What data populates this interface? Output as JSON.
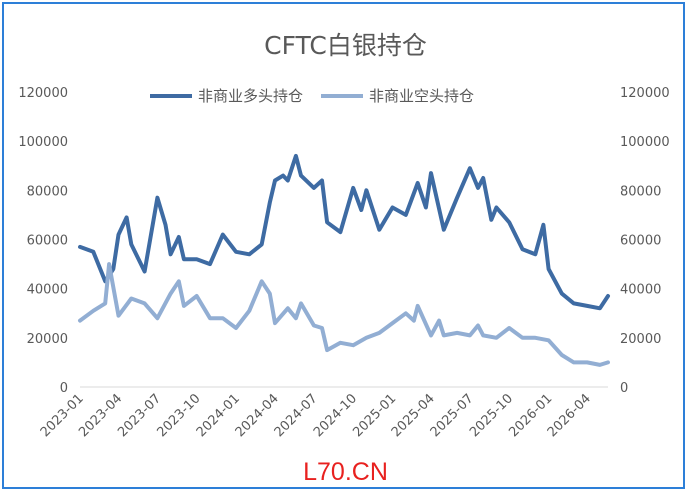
{
  "chart_data": {
    "type": "line",
    "title": "CFTC白银持仓",
    "xlabel": "",
    "ylabel": "",
    "ylim": [
      0,
      120000
    ],
    "y_ticks": [
      "0",
      "20000",
      "40000",
      "60000",
      "80000",
      "100000",
      "120000"
    ],
    "y2_ticks": [
      "0",
      "20000",
      "40000",
      "60000",
      "80000",
      "100000",
      "120000"
    ],
    "x_ticks": [
      "2023-01",
      "2023-04",
      "2023-07",
      "2023-10",
      "2024-01",
      "2024-04",
      "2024-07",
      "2024-10",
      "2025-01",
      "2025-04",
      "2025-07",
      "2025-10",
      "2026-01",
      "2026-04"
    ],
    "grid": false,
    "legend": "top",
    "series": [
      {
        "name": "非商业多头持仓",
        "color": "#3e6ba3",
        "points": [
          [
            "2023-01",
            57000
          ],
          [
            "2023-02",
            55000
          ],
          [
            "2023-03",
            43000
          ],
          [
            "2023-03-20",
            48000
          ],
          [
            "2023-04",
            62000
          ],
          [
            "2023-04-20",
            69000
          ],
          [
            "2023-05",
            58000
          ],
          [
            "2023-06",
            47000
          ],
          [
            "2023-07",
            77000
          ],
          [
            "2023-07-20",
            66000
          ],
          [
            "2023-08",
            54000
          ],
          [
            "2023-08-20",
            61000
          ],
          [
            "2023-09",
            52000
          ],
          [
            "2023-10",
            52000
          ],
          [
            "2023-11",
            50000
          ],
          [
            "2023-12",
            62000
          ],
          [
            "2024-01",
            55000
          ],
          [
            "2024-02",
            54000
          ],
          [
            "2024-03",
            58000
          ],
          [
            "2024-03-20",
            75000
          ],
          [
            "2024-04",
            84000
          ],
          [
            "2024-04-20",
            86000
          ],
          [
            "2024-05",
            84000
          ],
          [
            "2024-05-20",
            94000
          ],
          [
            "2024-06",
            86000
          ],
          [
            "2024-07",
            81000
          ],
          [
            "2024-07-20",
            84000
          ],
          [
            "2024-08",
            67000
          ],
          [
            "2024-09",
            63000
          ],
          [
            "2024-10",
            81000
          ],
          [
            "2024-10-20",
            72000
          ],
          [
            "2024-11",
            80000
          ],
          [
            "2024-12",
            64000
          ],
          [
            "2025-01",
            73000
          ],
          [
            "2025-02",
            70000
          ],
          [
            "2025-03",
            83000
          ],
          [
            "2025-03-20",
            73000
          ],
          [
            "2025-04",
            87000
          ],
          [
            "2025-05",
            64000
          ],
          [
            "2025-06",
            77000
          ],
          [
            "2025-07",
            89000
          ],
          [
            "2025-07-20",
            81000
          ],
          [
            "2025-08",
            85000
          ],
          [
            "2025-08-20",
            68000
          ],
          [
            "2025-09",
            73000
          ],
          [
            "2025-10",
            67000
          ],
          [
            "2025-11",
            56000
          ],
          [
            "2025-12",
            54000
          ],
          [
            "2025-12-20",
            66000
          ],
          [
            "2026-01",
            48000
          ],
          [
            "2026-02",
            38000
          ],
          [
            "2026-03",
            34000
          ],
          [
            "2026-04",
            33000
          ],
          [
            "2026-05",
            32000
          ],
          [
            "2026-05-20",
            37000
          ]
        ]
      },
      {
        "name": "非商业空头持仓",
        "color": "#92aed3",
        "points": [
          [
            "2023-01",
            27000
          ],
          [
            "2023-02",
            31000
          ],
          [
            "2023-03",
            34000
          ],
          [
            "2023-03-10",
            50000
          ],
          [
            "2023-04",
            29000
          ],
          [
            "2023-05",
            36000
          ],
          [
            "2023-06",
            34000
          ],
          [
            "2023-07",
            28000
          ],
          [
            "2023-08",
            38000
          ],
          [
            "2023-08-20",
            43000
          ],
          [
            "2023-09",
            33000
          ],
          [
            "2023-10",
            37000
          ],
          [
            "2023-11",
            28000
          ],
          [
            "2023-12",
            28000
          ],
          [
            "2024-01",
            24000
          ],
          [
            "2024-02",
            31000
          ],
          [
            "2024-03",
            43000
          ],
          [
            "2024-03-20",
            38000
          ],
          [
            "2024-04",
            26000
          ],
          [
            "2024-05",
            32000
          ],
          [
            "2024-05-20",
            28000
          ],
          [
            "2024-06",
            34000
          ],
          [
            "2024-07",
            25000
          ],
          [
            "2024-07-20",
            24000
          ],
          [
            "2024-08",
            15000
          ],
          [
            "2024-09",
            18000
          ],
          [
            "2024-10",
            17000
          ],
          [
            "2024-11",
            20000
          ],
          [
            "2024-12",
            22000
          ],
          [
            "2025-01",
            26000
          ],
          [
            "2025-02",
            30000
          ],
          [
            "2025-02-20",
            27000
          ],
          [
            "2025-03",
            33000
          ],
          [
            "2025-04",
            21000
          ],
          [
            "2025-04-20",
            27000
          ],
          [
            "2025-05",
            21000
          ],
          [
            "2025-06",
            22000
          ],
          [
            "2025-07",
            21000
          ],
          [
            "2025-07-20",
            25000
          ],
          [
            "2025-08",
            21000
          ],
          [
            "2025-09",
            20000
          ],
          [
            "2025-10",
            24000
          ],
          [
            "2025-11",
            20000
          ],
          [
            "2025-12",
            20000
          ],
          [
            "2026-01",
            19000
          ],
          [
            "2026-02",
            13000
          ],
          [
            "2026-03",
            10000
          ],
          [
            "2026-04",
            10000
          ],
          [
            "2026-05",
            9000
          ],
          [
            "2026-05-20",
            10000
          ]
        ]
      }
    ]
  },
  "watermark": "L70.CN"
}
